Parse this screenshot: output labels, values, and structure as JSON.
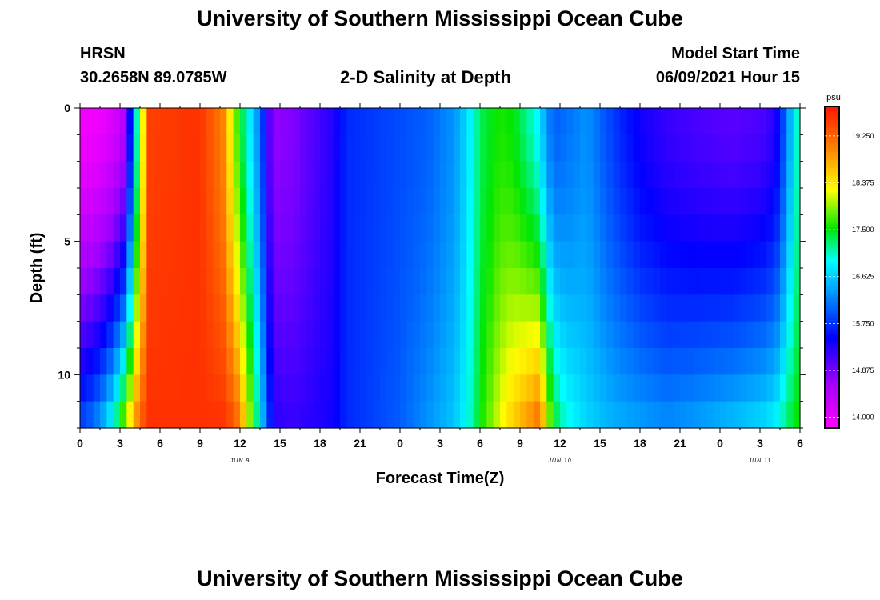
{
  "page": {
    "title_top": "University of Southern Mississippi Ocean Cube",
    "title_bottom": "University of Southern Mississippi Ocean Cube",
    "station": "HRSN",
    "coords": "30.2658N  89.0785W",
    "plot_title": "2-D Salinity at Depth",
    "model_start_label": "Model Start Time",
    "model_start_value": "06/09/2021 Hour 15"
  },
  "chart_data": {
    "type": "heatmap",
    "title": "2-D Salinity at Depth",
    "xlabel": "Forecast Time(Z)",
    "ylabel": "Depth (ft)",
    "x_ticks": [
      "0",
      "3",
      "6",
      "9",
      "12",
      "15",
      "18",
      "21",
      "0",
      "3",
      "6",
      "9",
      "12",
      "15",
      "18",
      "21",
      "0",
      "3",
      "6"
    ],
    "date_labels": [
      {
        "label": "JUN 9",
        "hour": 12
      },
      {
        "label": "JUN 10",
        "hour": 36
      },
      {
        "label": "JUN 11",
        "hour": 51
      }
    ],
    "x_range_hours": [
      0,
      54
    ],
    "y_ticks": [
      0,
      5,
      10
    ],
    "y_range_ft": [
      0,
      12
    ],
    "colorbar": {
      "unit": "psu",
      "range": [
        13.8,
        19.8
      ],
      "ticks": [
        "19.250",
        "18.375",
        "17.500",
        "16.625",
        "15.750",
        "14.875",
        "14.000"
      ]
    },
    "keyframes": [
      {
        "t": 0.0,
        "top": 13.9,
        "bot": 15.9
      },
      {
        "t": 1.0,
        "top": 13.9,
        "bot": 16.2
      },
      {
        "t": 2.0,
        "top": 14.0,
        "bot": 16.7
      },
      {
        "t": 3.0,
        "top": 14.3,
        "bot": 17.6
      },
      {
        "t": 3.5,
        "top": 14.5,
        "bot": 18.2
      },
      {
        "t": 4.0,
        "top": 16.5,
        "bot": 18.8
      },
      {
        "t": 4.5,
        "top": 17.6,
        "bot": 19.3
      },
      {
        "t": 5.2,
        "top": 19.5,
        "bot": 19.6
      },
      {
        "t": 9.0,
        "top": 19.6,
        "bot": 19.6
      },
      {
        "t": 10.8,
        "top": 19.0,
        "bot": 19.6
      },
      {
        "t": 11.5,
        "top": 18.0,
        "bot": 19.4
      },
      {
        "t": 12.0,
        "top": 17.5,
        "bot": 19.1
      },
      {
        "t": 12.6,
        "top": 17.0,
        "bot": 18.2
      },
      {
        "t": 13.0,
        "top": 16.5,
        "bot": 17.6
      },
      {
        "t": 13.5,
        "top": 16.2,
        "bot": 16.9
      },
      {
        "t": 14.0,
        "top": 15.3,
        "bot": 16.1
      },
      {
        "t": 14.5,
        "top": 14.7,
        "bot": 15.3
      },
      {
        "t": 16.0,
        "top": 14.8,
        "bot": 15.2
      },
      {
        "t": 19.0,
        "top": 15.3,
        "bot": 15.4
      },
      {
        "t": 20.0,
        "top": 15.7,
        "bot": 15.7
      },
      {
        "t": 24.0,
        "top": 15.9,
        "bot": 16.0
      },
      {
        "t": 26.0,
        "top": 16.0,
        "bot": 16.3
      },
      {
        "t": 28.0,
        "top": 16.3,
        "bot": 16.6
      },
      {
        "t": 29.0,
        "top": 16.7,
        "bot": 16.9
      },
      {
        "t": 30.0,
        "top": 17.3,
        "bot": 17.5
      },
      {
        "t": 31.5,
        "top": 17.6,
        "bot": 18.2
      },
      {
        "t": 32.5,
        "top": 17.5,
        "bot": 18.6
      },
      {
        "t": 33.5,
        "top": 17.2,
        "bot": 18.9
      },
      {
        "t": 34.5,
        "top": 16.8,
        "bot": 19.3
      },
      {
        "t": 35.0,
        "top": 16.3,
        "bot": 18.3
      },
      {
        "t": 35.5,
        "top": 16.0,
        "bot": 17.5
      },
      {
        "t": 36.5,
        "top": 16.1,
        "bot": 17.0
      },
      {
        "t": 38.0,
        "top": 16.3,
        "bot": 16.7
      },
      {
        "t": 40.0,
        "top": 15.8,
        "bot": 16.5
      },
      {
        "t": 42.0,
        "top": 15.4,
        "bot": 16.4
      },
      {
        "t": 44.0,
        "top": 15.2,
        "bot": 16.3
      },
      {
        "t": 46.0,
        "top": 15.1,
        "bot": 16.4
      },
      {
        "t": 49.0,
        "top": 15.0,
        "bot": 16.6
      },
      {
        "t": 51.5,
        "top": 15.1,
        "bot": 16.8
      },
      {
        "t": 52.5,
        "top": 15.5,
        "bot": 17.0
      },
      {
        "t": 53.0,
        "top": 16.2,
        "bot": 17.3
      },
      {
        "t": 54.0,
        "top": 17.3,
        "bot": 17.6
      }
    ]
  }
}
